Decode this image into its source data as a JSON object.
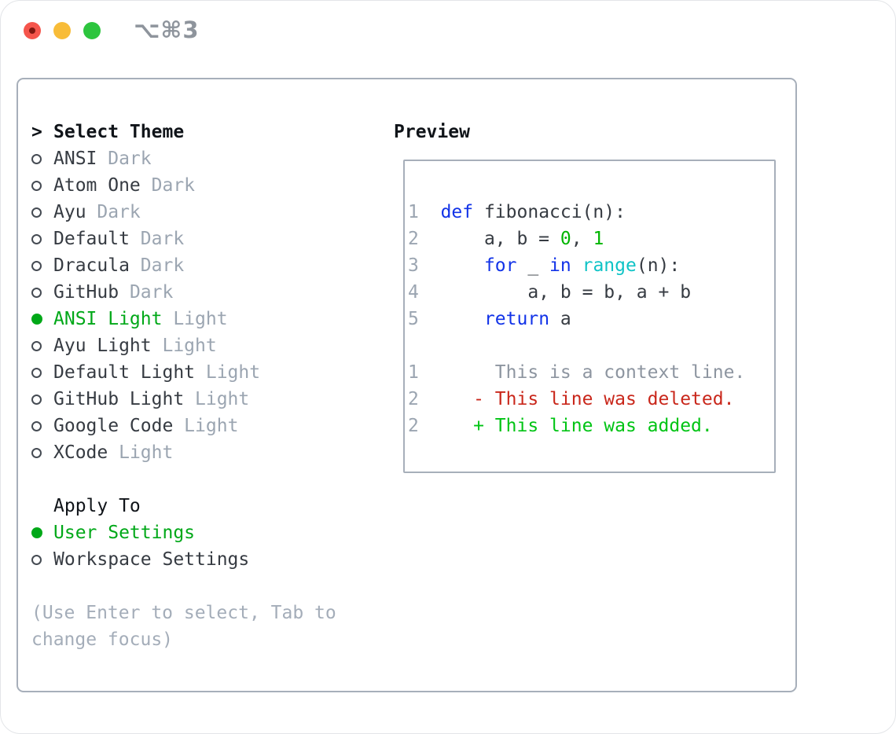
{
  "window": {
    "title": "⌥⌘3"
  },
  "colors": {
    "text": "#363b42",
    "heading": "#101419",
    "muted": "#9ba5b1",
    "hint": "#a4adb9",
    "ctx": "#8d95a0",
    "green_select": "#00a818",
    "green_code": "#00b500",
    "green_add": "#00c414",
    "red": "#c9271b",
    "blue": "#1233e8",
    "cyan": "#0fc3c6",
    "border": "#a7afba",
    "title_text": "#8e949c",
    "light_red": "#f5554c",
    "light_yellow": "#f8bc38",
    "light_green": "#2dc53e",
    "light_red_dot": "#801710"
  },
  "theme_panel": {
    "cursor": ">",
    "header": "Select Theme",
    "themes": [
      {
        "name": "ANSI",
        "badge": "Dark",
        "selected": false
      },
      {
        "name": "Atom One",
        "badge": "Dark",
        "selected": false
      },
      {
        "name": "Ayu",
        "badge": "Dark",
        "selected": false
      },
      {
        "name": "Default",
        "badge": "Dark",
        "selected": false
      },
      {
        "name": "Dracula",
        "badge": "Dark",
        "selected": false
      },
      {
        "name": "GitHub",
        "badge": "Dark",
        "selected": false
      },
      {
        "name": "ANSI Light",
        "badge": "Light",
        "selected": true
      },
      {
        "name": "Ayu Light",
        "badge": "Light",
        "selected": false
      },
      {
        "name": "Default Light",
        "badge": "Light",
        "selected": false
      },
      {
        "name": "GitHub Light",
        "badge": "Light",
        "selected": false
      },
      {
        "name": "Google Code",
        "badge": "Light",
        "selected": false
      },
      {
        "name": "XCode",
        "badge": "Light",
        "selected": false
      }
    ],
    "apply_to": {
      "header": "Apply To",
      "options": [
        {
          "label": "User Settings",
          "selected": true
        },
        {
          "label": "Workspace Settings",
          "selected": false
        }
      ]
    },
    "hint": "(Use Enter to select, Tab to change focus)"
  },
  "preview": {
    "header": "Preview",
    "lines": [
      [
        {
          "t": "1",
          "c": "num"
        },
        {
          "t": "  ",
          "c": "plain"
        },
        {
          "t": "def",
          "c": "kw"
        },
        {
          "t": " fibonacci(n):",
          "c": "plain"
        }
      ],
      [
        {
          "t": "2",
          "c": "num"
        },
        {
          "t": "      a, b = ",
          "c": "plain"
        },
        {
          "t": "0",
          "c": "numlit"
        },
        {
          "t": ", ",
          "c": "plain"
        },
        {
          "t": "1",
          "c": "numlit"
        }
      ],
      [
        {
          "t": "3",
          "c": "num"
        },
        {
          "t": "      ",
          "c": "plain"
        },
        {
          "t": "for",
          "c": "kw"
        },
        {
          "t": " _ ",
          "c": "plain"
        },
        {
          "t": "in",
          "c": "kw"
        },
        {
          "t": " ",
          "c": "plain"
        },
        {
          "t": "range",
          "c": "fn"
        },
        {
          "t": "(n):",
          "c": "plain"
        }
      ],
      [
        {
          "t": "4",
          "c": "num"
        },
        {
          "t": "          a, b = b, a + b",
          "c": "plain"
        }
      ],
      [
        {
          "t": "5",
          "c": "num"
        },
        {
          "t": "      ",
          "c": "plain"
        },
        {
          "t": "return",
          "c": "kw"
        },
        {
          "t": " a",
          "c": "plain"
        }
      ],
      [],
      [
        {
          "t": "1",
          "c": "num"
        },
        {
          "t": "       This is a context line.",
          "c": "ctx"
        }
      ],
      [
        {
          "t": "2",
          "c": "num"
        },
        {
          "t": "     ",
          "c": "plain"
        },
        {
          "t": "- This line was deleted.",
          "c": "del"
        }
      ],
      [
        {
          "t": "2",
          "c": "num"
        },
        {
          "t": "     ",
          "c": "plain"
        },
        {
          "t": "+ This line was added.",
          "c": "add"
        }
      ]
    ]
  }
}
